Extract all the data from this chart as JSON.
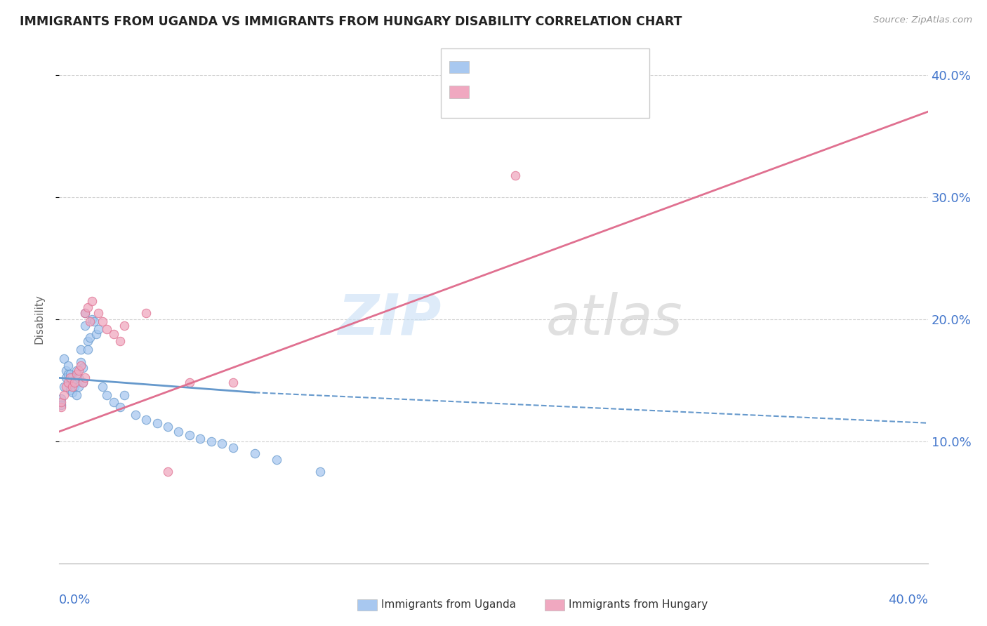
{
  "title": "IMMIGRANTS FROM UGANDA VS IMMIGRANTS FROM HUNGARY DISABILITY CORRELATION CHART",
  "source": "Source: ZipAtlas.com",
  "ylabel": "Disability",
  "color_uganda": "#a8c8f0",
  "color_hungary": "#f0a8c0",
  "color_uganda_line": "#6699cc",
  "color_hungary_line": "#e07090",
  "uganda_scatter_x": [
    0.001,
    0.001,
    0.002,
    0.002,
    0.003,
    0.003,
    0.004,
    0.004,
    0.005,
    0.005,
    0.005,
    0.006,
    0.006,
    0.006,
    0.007,
    0.007,
    0.008,
    0.008,
    0.008,
    0.009,
    0.009,
    0.01,
    0.01,
    0.011,
    0.011,
    0.012,
    0.012,
    0.013,
    0.013,
    0.014,
    0.015,
    0.016,
    0.017,
    0.018,
    0.02,
    0.022,
    0.025,
    0.028,
    0.03,
    0.035,
    0.04,
    0.045,
    0.05,
    0.055,
    0.06,
    0.065,
    0.07,
    0.075,
    0.08,
    0.09,
    0.1,
    0.12
  ],
  "uganda_scatter_y": [
    0.135,
    0.13,
    0.168,
    0.145,
    0.158,
    0.152,
    0.162,
    0.155,
    0.148,
    0.142,
    0.155,
    0.152,
    0.148,
    0.14,
    0.15,
    0.145,
    0.158,
    0.148,
    0.138,
    0.152,
    0.145,
    0.175,
    0.165,
    0.16,
    0.148,
    0.205,
    0.195,
    0.182,
    0.175,
    0.185,
    0.2,
    0.198,
    0.188,
    0.192,
    0.145,
    0.138,
    0.132,
    0.128,
    0.138,
    0.122,
    0.118,
    0.115,
    0.112,
    0.108,
    0.105,
    0.102,
    0.1,
    0.098,
    0.095,
    0.09,
    0.085,
    0.075
  ],
  "hungary_scatter_x": [
    0.001,
    0.001,
    0.002,
    0.003,
    0.004,
    0.005,
    0.006,
    0.007,
    0.008,
    0.009,
    0.01,
    0.011,
    0.012,
    0.012,
    0.013,
    0.014,
    0.015,
    0.018,
    0.02,
    0.022,
    0.025,
    0.028,
    0.03,
    0.04,
    0.05,
    0.06,
    0.08,
    0.21
  ],
  "hungary_scatter_y": [
    0.128,
    0.132,
    0.138,
    0.145,
    0.148,
    0.152,
    0.145,
    0.148,
    0.155,
    0.158,
    0.162,
    0.148,
    0.152,
    0.205,
    0.21,
    0.198,
    0.215,
    0.205,
    0.198,
    0.192,
    0.188,
    0.182,
    0.195,
    0.205,
    0.075,
    0.148,
    0.148,
    0.318
  ],
  "xlim": [
    0.0,
    0.4
  ],
  "ylim": [
    0.0,
    0.4
  ],
  "ytick_vals": [
    0.1,
    0.2,
    0.3,
    0.4
  ],
  "ytick_labels": [
    "10.0%",
    "20.0%",
    "30.0%",
    "40.0%"
  ],
  "bg_color": "#ffffff",
  "grid_color": "#cccccc",
  "title_color": "#222222",
  "tick_label_color": "#4477cc"
}
